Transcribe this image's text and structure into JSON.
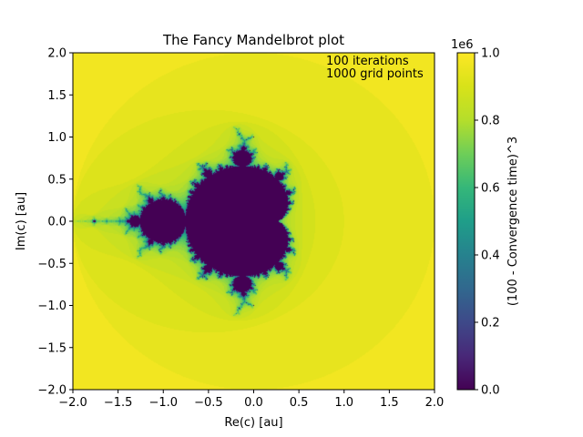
{
  "chart_data": {
    "type": "heatmap",
    "title": "The Fancy Mandelbrot plot",
    "xlabel": "Re(c) [au]",
    "ylabel": "Im(c) [au]",
    "xlim": [
      -2.0,
      2.0
    ],
    "ylim": [
      -2.0,
      2.0
    ],
    "x_ticks": [
      "−2.0",
      "−1.5",
      "−1.0",
      "−0.5",
      "0.0",
      "0.5",
      "1.0",
      "1.5",
      "2.0"
    ],
    "y_ticks": [
      "2.0",
      "1.5",
      "1.0",
      "0.5",
      "0.0",
      "−0.5",
      "−1.0",
      "−1.5",
      "−2.0"
    ],
    "max_iterations": 100,
    "annotations": [
      "100 iterations",
      "1000 grid points"
    ],
    "colormap": "viridis",
    "colorbar": {
      "label": "(100 - Convergence time)^3",
      "range": [
        0.0,
        1.0
      ],
      "multiplier": "1e6",
      "ticks": [
        "1.0",
        "0.8",
        "0.6",
        "0.4",
        "0.2",
        "0.0"
      ]
    },
    "grid": false
  }
}
